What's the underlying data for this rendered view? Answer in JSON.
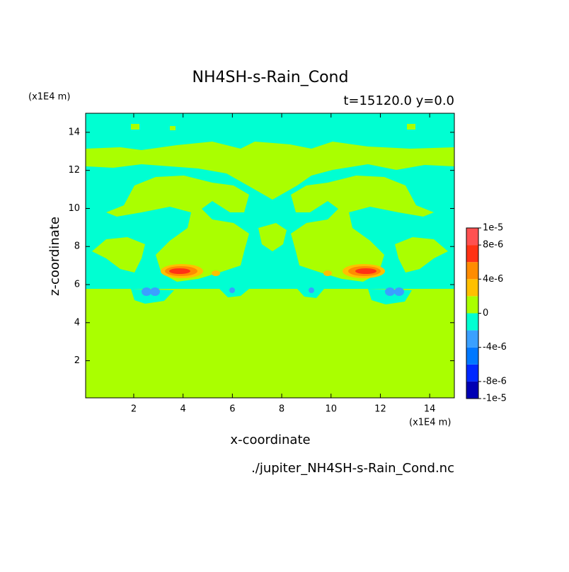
{
  "chart_data": {
    "type": "contour",
    "title": "NH4SH-s-Rain_Cond",
    "subtitle": "t=15120.0 y=0.0",
    "x_label": "x-coordinate",
    "y_label": "z-coordinate",
    "x_unit": "(x1E4 m)",
    "y_unit": "(x1E4 m)",
    "source": "./jupiter_NH4SH-s-Rain_Cond.nc",
    "xlim": [
      0.05,
      15
    ],
    "xticks": [
      2,
      4,
      6,
      8,
      10,
      12,
      14
    ],
    "ylim": [
      0.05,
      15
    ],
    "yticks": [
      2,
      4,
      6,
      8,
      10,
      12,
      14
    ],
    "colorbar": {
      "levels": [
        -1e-05,
        -8e-06,
        -6e-06,
        -4e-06,
        -2e-06,
        0,
        2e-06,
        4e-06,
        6e-06,
        8e-06,
        1e-05
      ],
      "colors": [
        "#0000b4",
        "#0028ff",
        "#0078ff",
        "#3aa0ff",
        "#00ffd2",
        "#aaff00",
        "#ffc000",
        "#ff8c00",
        "#ff3214",
        "#ff5050"
      ],
      "ticks": [
        {
          "value": 1e-05,
          "label": "1e-5"
        },
        {
          "value": 8e-06,
          "label": "8e-6"
        },
        {
          "value": 4e-06,
          "label": "4e-6"
        },
        0,
        {
          "value": -4e-06,
          "label": "-4e-6"
        },
        {
          "value": -8e-06,
          "label": "-8e-6"
        },
        {
          "value": -1e-05,
          "label": "-1e-5"
        }
      ]
    }
  }
}
